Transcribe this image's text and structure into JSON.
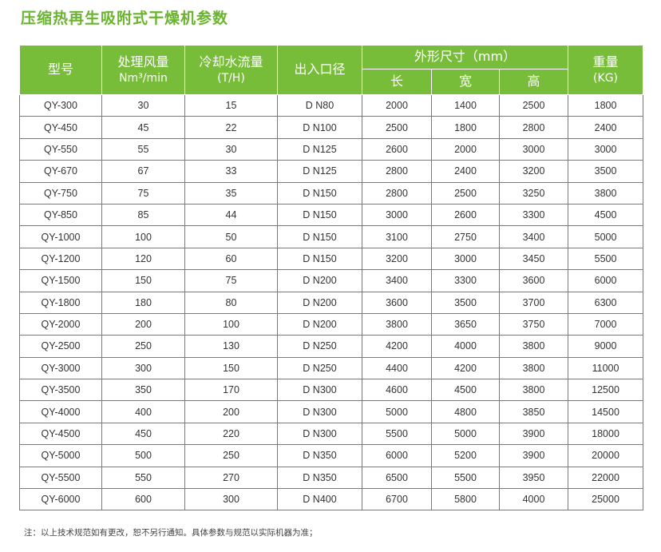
{
  "title": "压缩热再生吸附式干燥机参数",
  "colors": {
    "accent": "#6ab42e",
    "header_bg": "#78bd3a",
    "header_text": "#ffffff",
    "grid": "#7a7a7a"
  },
  "header": {
    "model": "型号",
    "airflow": {
      "line1": "处理风量",
      "line2": "Nm³/min"
    },
    "cooling": {
      "line1": "冷却水流量",
      "line2": "(T/H)"
    },
    "port": "出入口径",
    "dimensions": "外形尺寸（mm）",
    "length": "长",
    "width": "宽",
    "height": "高",
    "weight": {
      "line1": "重量",
      "line2": "(KG)"
    }
  },
  "rows": [
    [
      "QY-300",
      "30",
      "15",
      "D N80",
      "2000",
      "1400",
      "2500",
      "1800"
    ],
    [
      "QY-450",
      "45",
      "22",
      "D N100",
      "2500",
      "1800",
      "2800",
      "2400"
    ],
    [
      "QY-550",
      "55",
      "30",
      "D N125",
      "2600",
      "2000",
      "3000",
      "3000"
    ],
    [
      "QY-670",
      "67",
      "33",
      "D N125",
      "2800",
      "2400",
      "3200",
      "3500"
    ],
    [
      "QY-750",
      "75",
      "35",
      "D N150",
      "2800",
      "2500",
      "3250",
      "3800"
    ],
    [
      "QY-850",
      "85",
      "44",
      "D N150",
      "3000",
      "2600",
      "3300",
      "4500"
    ],
    [
      "QY-1000",
      "100",
      "50",
      "D N150",
      "3100",
      "2750",
      "3400",
      "5000"
    ],
    [
      "QY-1200",
      "120",
      "60",
      "D N150",
      "3200",
      "3000",
      "3450",
      "5500"
    ],
    [
      "QY-1500",
      "150",
      "75",
      "D N200",
      "3400",
      "3300",
      "3600",
      "6000"
    ],
    [
      "QY-1800",
      "180",
      "80",
      "D N200",
      "3600",
      "3500",
      "3700",
      "6300"
    ],
    [
      "QY-2000",
      "200",
      "100",
      "D N200",
      "3800",
      "3650",
      "3750",
      "7000"
    ],
    [
      "QY-2500",
      "250",
      "130",
      "D N250",
      "4200",
      "4000",
      "3800",
      "9000"
    ],
    [
      "QY-3000",
      "300",
      "150",
      "D N250",
      "4400",
      "4200",
      "3800",
      "11000"
    ],
    [
      "QY-3500",
      "350",
      "170",
      "D N300",
      "4600",
      "4500",
      "3800",
      "12500"
    ],
    [
      "QY-4000",
      "400",
      "200",
      "D N300",
      "5000",
      "4800",
      "3850",
      "14500"
    ],
    [
      "QY-4500",
      "450",
      "220",
      "D N300",
      "5500",
      "5000",
      "3900",
      "18000"
    ],
    [
      "QY-5000",
      "500",
      "250",
      "D N350",
      "6000",
      "5200",
      "3900",
      "20000"
    ],
    [
      "QY-5500",
      "550",
      "270",
      "D N350",
      "6500",
      "5500",
      "3950",
      "22000"
    ],
    [
      "QY-6000",
      "600",
      "300",
      "D N400",
      "6700",
      "5800",
      "4000",
      "25000"
    ]
  ],
  "note": "注：以上技术规范如有更改，恕不另行通知。具体参数与规范以实际机器为准；"
}
